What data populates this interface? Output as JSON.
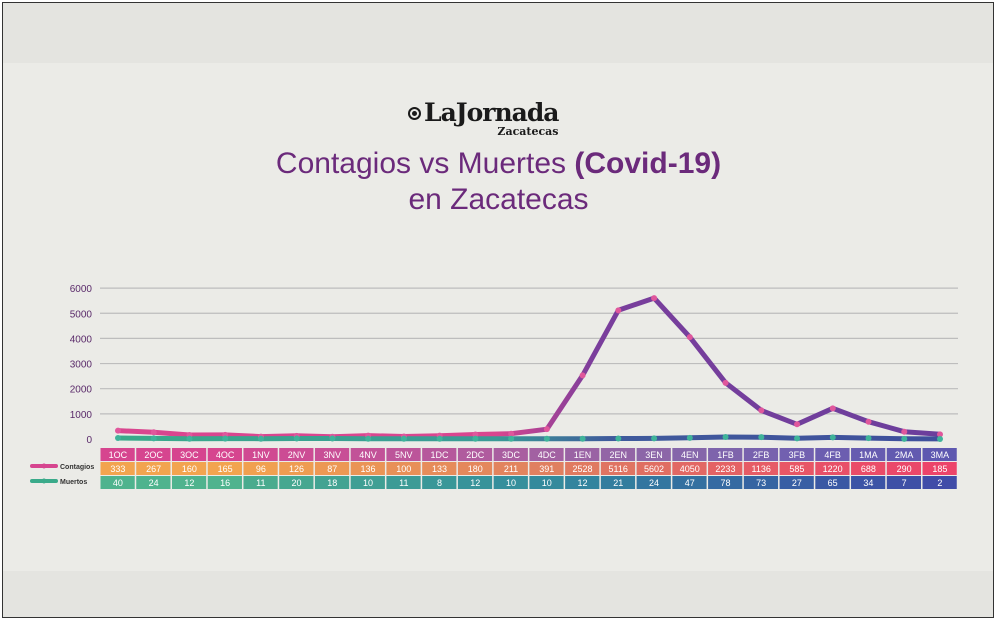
{
  "logo": {
    "main": "LaJornada",
    "sub": "Zacatecas",
    "emblem": "circle-emblem-icon"
  },
  "title": {
    "line1_prefix": "Contagios vs Muertes ",
    "line1_bold": "(Covid-19)",
    "line2": "en Zacatecas"
  },
  "colors": {
    "title": "#6b2a7b",
    "contagios_early": "#d9468f",
    "contagios_late": "#7a3e9c",
    "muertos_early": "#3aaa8a",
    "muertos_late": "#3f4f9c",
    "grid": "#bdbdbd",
    "axis_text": "#5a2a6a"
  },
  "chart_data": {
    "type": "line",
    "categories": [
      "1OC",
      "2OC",
      "3OC",
      "4OC",
      "1NV",
      "2NV",
      "3NV",
      "4NV",
      "5NV",
      "1DC",
      "2DC",
      "3DC",
      "4DC",
      "1EN",
      "2EN",
      "3EN",
      "4EN",
      "1FB",
      "2FB",
      "3FB",
      "4FB",
      "1MA",
      "2MA",
      "3MA"
    ],
    "series": [
      {
        "name": "Contagios",
        "values": [
          333,
          267,
          160,
          165,
          96,
          126,
          87,
          136,
          100,
          133,
          180,
          211,
          391,
          2528,
          5116,
          5602,
          4050,
          2233,
          1136,
          585,
          1220,
          688,
          290,
          185
        ]
      },
      {
        "name": "Muertos",
        "values": [
          40,
          24,
          12,
          16,
          11,
          20,
          18,
          10,
          11,
          8,
          12,
          10,
          10,
          12,
          21,
          24,
          47,
          78,
          73,
          27,
          65,
          34,
          7,
          2
        ]
      }
    ],
    "y_ticks": [
      0,
      1000,
      2000,
      3000,
      4000,
      5000,
      6000
    ],
    "y_tick_labels": [
      "0",
      "1000",
      "2000",
      "3000",
      "4000",
      "5000",
      "6000"
    ],
    "legend": [
      "Contagios",
      "Muertos"
    ],
    "grid": true
  }
}
